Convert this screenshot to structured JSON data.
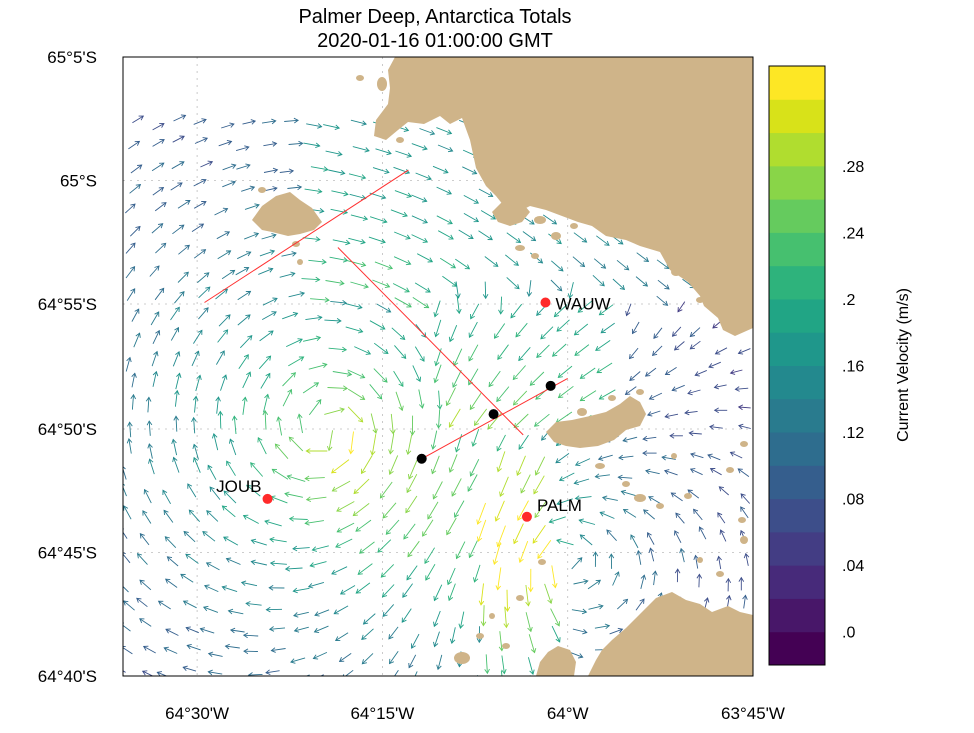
{
  "title": "Palmer Deep, Antarctica Totals",
  "subtitle": "2020-01-16 01:00:00 GMT",
  "map": {
    "lon_range": [
      -64.6,
      -63.75
    ],
    "lat_range": [
      -65.083,
      -64.667
    ],
    "lat_ticks": [
      {
        "value": -64.667,
        "label": "64°40'S"
      },
      {
        "value": -64.75,
        "label": "64°45'S"
      },
      {
        "value": -64.833,
        "label": "64°50'S"
      },
      {
        "value": -64.917,
        "label": "64°55'S"
      },
      {
        "value": -65.0,
        "label": "65°S"
      },
      {
        "value": -65.083,
        "label": "65°5'S"
      }
    ],
    "lon_ticks": [
      {
        "value": -64.5,
        "label": "64°30'W"
      },
      {
        "value": -64.25,
        "label": "64°15'W"
      },
      {
        "value": -64.0,
        "label": "64°W"
      },
      {
        "value": -63.75,
        "label": "63°45'W"
      }
    ],
    "colors": {
      "land": "#cfb489",
      "grid": "#bdbdbd",
      "station": "#ff2a2a",
      "mooring": "#000000",
      "transect": "#ff3030"
    }
  },
  "stations": [
    {
      "name": "JOUB",
      "lon": -64.405,
      "lat": -64.786
    },
    {
      "name": "PALM",
      "lon": -64.055,
      "lat": -64.774
    },
    {
      "name": "WAUW",
      "lon": -64.03,
      "lat": -64.918
    }
  ],
  "moorings": [
    {
      "lon": -64.197,
      "lat": -64.813
    },
    {
      "lon": -64.1,
      "lat": -64.843
    },
    {
      "lon": -64.023,
      "lat": -64.862
    }
  ],
  "transects": [
    {
      "points": [
        [
          -64.197,
          -64.813
        ],
        [
          -64.0,
          -64.867
        ]
      ]
    },
    {
      "points": [
        [
          -64.06,
          -64.829
        ],
        [
          -64.31,
          -64.955
        ]
      ]
    },
    {
      "points": [
        [
          -64.49,
          -64.918
        ],
        [
          -64.215,
          -65.007
        ]
      ]
    }
  ],
  "colorbar": {
    "label": "Current Velocity (m/s)",
    "min": 0.0,
    "max": 0.32,
    "step": 0.02,
    "ticks": [
      {
        "value": 0.0,
        "label": ".0"
      },
      {
        "value": 0.04,
        "label": ".04"
      },
      {
        "value": 0.08,
        "label": ".08"
      },
      {
        "value": 0.12,
        "label": ".12"
      },
      {
        "value": 0.16,
        "label": ".16"
      },
      {
        "value": 0.2,
        "label": ".2"
      },
      {
        "value": 0.24,
        "label": ".24"
      },
      {
        "value": 0.28,
        "label": ".28"
      }
    ],
    "colors": [
      "#440154",
      "#481769",
      "#472a7a",
      "#433d84",
      "#3d4e8a",
      "#355e8d",
      "#2e6d8e",
      "#297b8e",
      "#23898e",
      "#1f978b",
      "#21a585",
      "#2eb37c",
      "#46c06f",
      "#65cb5e",
      "#89d548",
      "#b0dd2f",
      "#d8e219",
      "#fde725"
    ]
  }
}
